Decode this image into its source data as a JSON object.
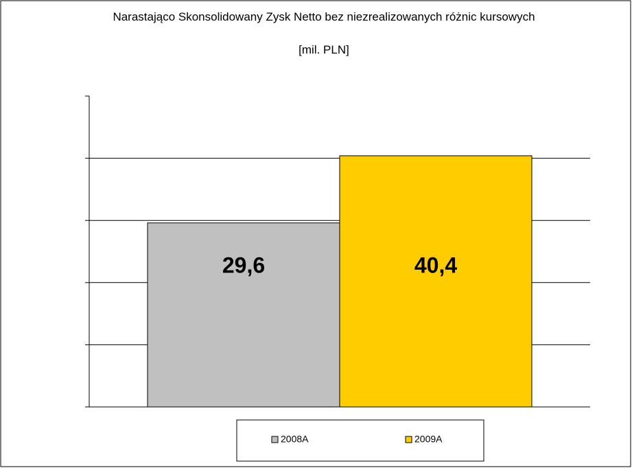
{
  "chart_data": {
    "type": "bar",
    "title": "Narastająco Skonsolidowany Zysk Netto bez niezrealizowanych różnic kursowych",
    "subtitle": "[mil. PLN]",
    "categories": [
      null
    ],
    "series": [
      {
        "name": "2008A",
        "color": "#c0c0c0",
        "values": [
          29.6
        ],
        "value_labels": [
          "29,6"
        ]
      },
      {
        "name": "2009A",
        "color": "#ffcc00",
        "values": [
          40.4
        ],
        "value_labels": [
          "40,4"
        ]
      }
    ],
    "ylim": [
      0,
      50
    ],
    "yticks": [
      0,
      10,
      20,
      30,
      40,
      50
    ],
    "grid": true,
    "legend": "bottom"
  }
}
